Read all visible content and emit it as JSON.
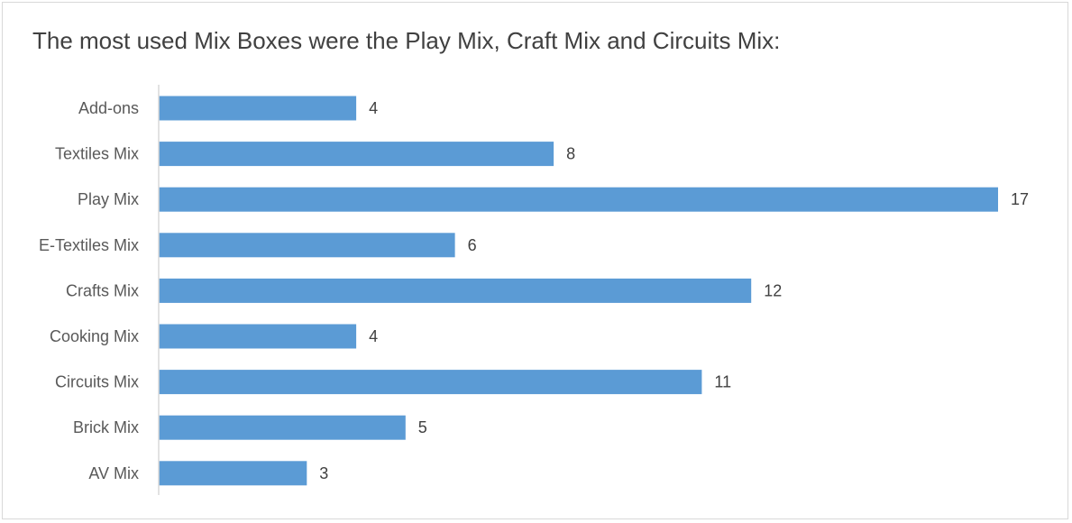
{
  "chart_data": {
    "type": "bar",
    "orientation": "horizontal",
    "title": "The most used Mix Boxes were the Play Mix, Craft Mix and Circuits Mix:",
    "categories": [
      "Add-ons",
      "Textiles Mix",
      "Play Mix",
      "E-Textiles Mix",
      "Crafts Mix",
      "Cooking Mix",
      "Circuits Mix",
      "Brick Mix",
      "AV Mix"
    ],
    "values": [
      4,
      8,
      17,
      6,
      12,
      4,
      11,
      5,
      3
    ],
    "xlim": [
      0,
      17
    ],
    "data_labels": true,
    "grid": false,
    "legend": "none",
    "bar_color": "#5b9bd5",
    "axis_color": "#d9d9d9"
  }
}
